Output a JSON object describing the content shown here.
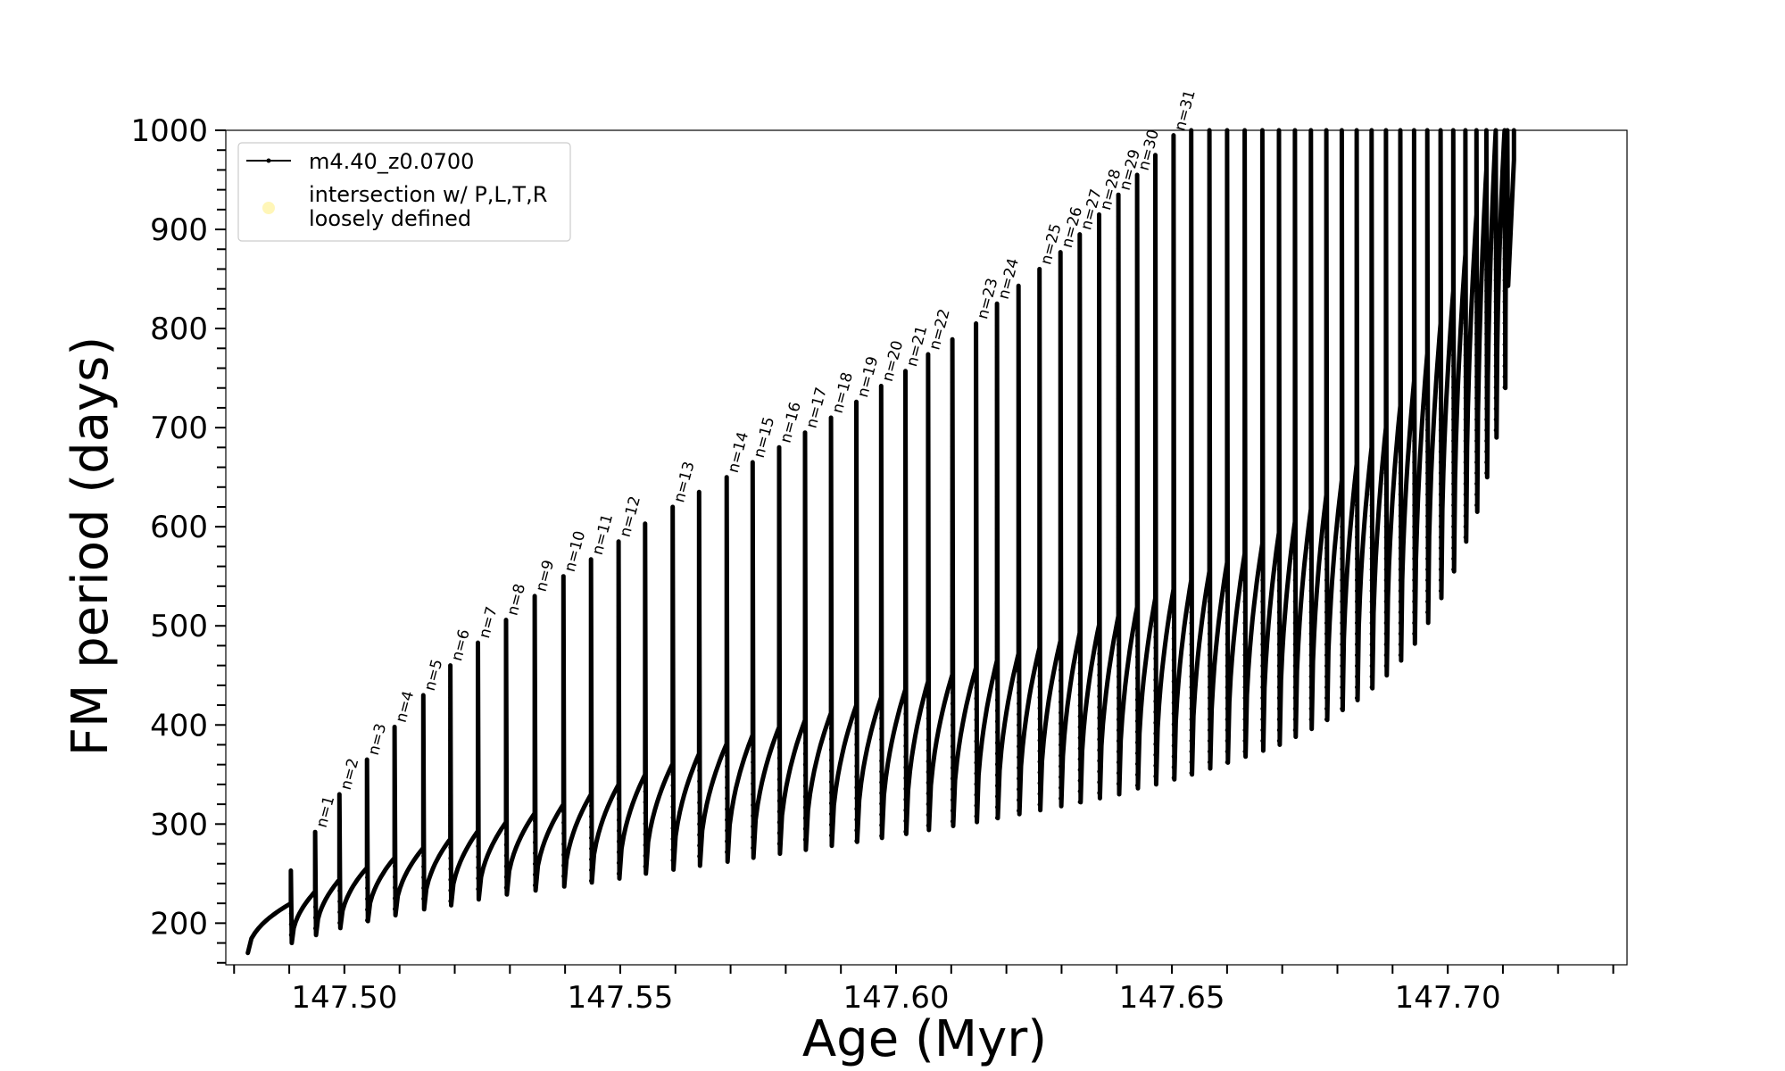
{
  "chart_data": {
    "type": "line",
    "title": "",
    "xlabel": "Age (Myr)",
    "ylabel": "FM period (days)",
    "xlim": [
      147.4785,
      147.7325
    ],
    "ylim": [
      158,
      1000
    ],
    "xticks": [
      147.5,
      147.55,
      147.6,
      147.65,
      147.7
    ],
    "xtick_labels": [
      "147.50",
      "147.55",
      "147.60",
      "147.65",
      "147.70"
    ],
    "yticks": [
      200,
      300,
      400,
      500,
      600,
      700,
      800,
      900,
      1000
    ],
    "ytick_labels": [
      "200",
      "300",
      "400",
      "500",
      "600",
      "700",
      "800",
      "900",
      "1000"
    ],
    "grid": false,
    "legend": {
      "placement": "top-left",
      "entries": [
        {
          "label": "m4.40_z0.0700",
          "marker": "line-dot",
          "color": "#000000"
        },
        {
          "label": "intersection w/ P,L,T,R\nloosely defined",
          "marker": "circle",
          "color": "#fff5b0"
        }
      ]
    },
    "series": [
      {
        "name": "m4.40_z0.0700",
        "color": "#000000",
        "start": {
          "age": 147.4825,
          "period": 170
        },
        "end_spike": {
          "age": 147.712,
          "period_top": 1000,
          "period_bottom": 970
        },
        "pulses": [
          {
            "age": 147.4903,
            "base": 220,
            "top": 253,
            "dip": 180
          },
          {
            "age": 147.4947,
            "base": 232,
            "top": 292,
            "dip": 188,
            "label": "n=1"
          },
          {
            "age": 147.4991,
            "base": 244,
            "top": 330,
            "dip": 195,
            "label": "n=2"
          },
          {
            "age": 147.5041,
            "base": 256,
            "top": 365,
            "dip": 202,
            "label": "n=3"
          },
          {
            "age": 147.5091,
            "base": 266,
            "top": 398,
            "dip": 208,
            "label": "n=4"
          },
          {
            "age": 147.5143,
            "base": 276,
            "top": 430,
            "dip": 214,
            "label": "n=5"
          },
          {
            "age": 147.5192,
            "base": 285,
            "top": 460,
            "dip": 218,
            "label": "n=6"
          },
          {
            "age": 147.5242,
            "base": 293,
            "top": 483,
            "dip": 224,
            "label": "n=7"
          },
          {
            "age": 147.5293,
            "base": 302,
            "top": 506,
            "dip": 229,
            "label": "n=8"
          },
          {
            "age": 147.5345,
            "base": 311,
            "top": 530,
            "dip": 233,
            "label": "n=9"
          },
          {
            "age": 147.5397,
            "base": 320,
            "top": 550,
            "dip": 237,
            "label": "n=10"
          },
          {
            "age": 147.5447,
            "base": 330,
            "top": 567,
            "dip": 241,
            "label": "n=11"
          },
          {
            "age": 147.5497,
            "base": 340,
            "top": 585,
            "dip": 245,
            "label": "n=12"
          },
          {
            "age": 147.5545,
            "base": 350,
            "top": 603,
            "dip": 250
          },
          {
            "age": 147.5595,
            "base": 361,
            "top": 620,
            "dip": 254,
            "label": "n=13"
          },
          {
            "age": 147.5643,
            "base": 371,
            "top": 635,
            "dip": 258
          },
          {
            "age": 147.5693,
            "base": 381,
            "top": 650,
            "dip": 262,
            "label": "n=14"
          },
          {
            "age": 147.574,
            "base": 390,
            "top": 665,
            "dip": 266,
            "label": "n=15"
          },
          {
            "age": 147.5788,
            "base": 398,
            "top": 680,
            "dip": 270,
            "label": "n=16"
          },
          {
            "age": 147.5835,
            "base": 405,
            "top": 695,
            "dip": 274,
            "label": "n=17"
          },
          {
            "age": 147.5882,
            "base": 412,
            "top": 710,
            "dip": 278,
            "label": "n=18"
          },
          {
            "age": 147.5928,
            "base": 420,
            "top": 726,
            "dip": 282,
            "label": "n=19"
          },
          {
            "age": 147.5973,
            "base": 428,
            "top": 742,
            "dip": 286,
            "label": "n=20"
          },
          {
            "age": 147.6017,
            "base": 436,
            "top": 757,
            "dip": 290,
            "label": "n=21"
          },
          {
            "age": 147.6058,
            "base": 444,
            "top": 774,
            "dip": 294,
            "label": "n=22"
          },
          {
            "age": 147.6102,
            "base": 451,
            "top": 789,
            "dip": 298
          },
          {
            "age": 147.6145,
            "base": 458,
            "top": 805,
            "dip": 302,
            "label": "n=23"
          },
          {
            "age": 147.6183,
            "base": 465,
            "top": 825,
            "dip": 306,
            "label": "n=24"
          },
          {
            "age": 147.6222,
            "base": 472,
            "top": 843,
            "dip": 310
          },
          {
            "age": 147.626,
            "base": 478,
            "top": 860,
            "dip": 314,
            "label": "n=25"
          },
          {
            "age": 147.6298,
            "base": 485,
            "top": 877,
            "dip": 318,
            "label": "n=26"
          },
          {
            "age": 147.6333,
            "base": 493,
            "top": 895,
            "dip": 322,
            "label": "n=27"
          },
          {
            "age": 147.6368,
            "base": 501,
            "top": 915,
            "dip": 326,
            "label": "n=28"
          },
          {
            "age": 147.6403,
            "base": 510,
            "top": 935,
            "dip": 330,
            "label": "n=29"
          },
          {
            "age": 147.6437,
            "base": 519,
            "top": 955,
            "dip": 336,
            "label": "n=30"
          },
          {
            "age": 147.647,
            "base": 528,
            "top": 975,
            "dip": 340
          },
          {
            "age": 147.6503,
            "base": 537,
            "top": 995,
            "dip": 345,
            "label": "n=31"
          },
          {
            "age": 147.6535,
            "base": 546,
            "top": 1000,
            "dip": 350
          },
          {
            "age": 147.6568,
            "base": 555,
            "top": 1000,
            "dip": 356
          },
          {
            "age": 147.66,
            "base": 564,
            "top": 1000,
            "dip": 362
          },
          {
            "age": 147.6632,
            "base": 573,
            "top": 1000,
            "dip": 368
          },
          {
            "age": 147.6664,
            "base": 583,
            "top": 1000,
            "dip": 374
          },
          {
            "age": 147.6694,
            "base": 594,
            "top": 1000,
            "dip": 380
          },
          {
            "age": 147.6723,
            "base": 605,
            "top": 1000,
            "dip": 388
          },
          {
            "age": 147.6752,
            "base": 618,
            "top": 1000,
            "dip": 396
          },
          {
            "age": 147.678,
            "base": 632,
            "top": 1000,
            "dip": 405
          },
          {
            "age": 147.6808,
            "base": 647,
            "top": 1000,
            "dip": 415
          },
          {
            "age": 147.6835,
            "base": 663,
            "top": 1000,
            "dip": 425
          },
          {
            "age": 147.6862,
            "base": 680,
            "top": 1000,
            "dip": 437
          },
          {
            "age": 147.6888,
            "base": 700,
            "top": 1000,
            "dip": 450
          },
          {
            "age": 147.6914,
            "base": 722,
            "top": 1000,
            "dip": 465
          },
          {
            "age": 147.6939,
            "base": 747,
            "top": 1000,
            "dip": 482
          },
          {
            "age": 147.6963,
            "base": 775,
            "top": 1000,
            "dip": 503
          },
          {
            "age": 147.6987,
            "base": 805,
            "top": 1000,
            "dip": 528
          },
          {
            "age": 147.701,
            "base": 838,
            "top": 1000,
            "dip": 555
          },
          {
            "age": 147.7032,
            "base": 875,
            "top": 1000,
            "dip": 585
          },
          {
            "age": 147.7052,
            "base": 915,
            "top": 1000,
            "dip": 615
          },
          {
            "age": 147.707,
            "base": 960,
            "top": 1000,
            "dip": 650
          },
          {
            "age": 147.7087,
            "base": 1000,
            "top": 1000,
            "dip": 690
          },
          {
            "age": 147.7103,
            "base": 1000,
            "top": 1000,
            "dip": 740
          },
          {
            "age": 147.7108,
            "base": 1000,
            "top": 1000,
            "dip": 843
          }
        ]
      }
    ]
  }
}
